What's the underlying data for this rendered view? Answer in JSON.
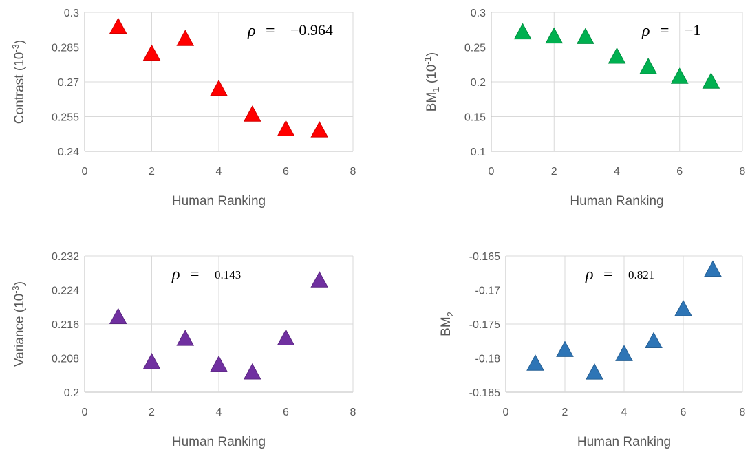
{
  "chart_data": [
    {
      "type": "scatter",
      "xlabel": "Human Ranking",
      "ylabel": "Contrast (10",
      "ylabel_sup": "-3",
      "ylabel_suffix": ")",
      "xlim": [
        0,
        8
      ],
      "ylim": [
        0.24,
        0.3
      ],
      "xticks": [
        "0",
        "2",
        "4",
        "6",
        "8"
      ],
      "yticks": [
        "0.24",
        "0.255",
        "0.27",
        "0.285",
        "0.3"
      ],
      "annotation": {
        "symbol": "ρ",
        "equals": "=",
        "value": "−0.964"
      },
      "color": "#ff0000",
      "points": [
        {
          "x": 1,
          "y": 0.2935
        },
        {
          "x": 2,
          "y": 0.2819
        },
        {
          "x": 3,
          "y": 0.2883
        },
        {
          "x": 4,
          "y": 0.2667
        },
        {
          "x": 5,
          "y": 0.2556
        },
        {
          "x": 6,
          "y": 0.2493
        },
        {
          "x": 7,
          "y": 0.2488
        }
      ]
    },
    {
      "type": "scatter",
      "xlabel": "Human Ranking",
      "ylabel": "BM",
      "ylabel_sub": "1",
      "ylabel_suffix": " (10",
      "ylabel_sup": "-1",
      "ylabel_suffix2": ")",
      "xlim": [
        0,
        8
      ],
      "ylim": [
        0.1,
        0.3
      ],
      "xticks": [
        "0",
        "2",
        "4",
        "6",
        "8"
      ],
      "yticks": [
        "0.1",
        "0.15",
        "0.2",
        "0.25",
        "0.3"
      ],
      "annotation": {
        "symbol": "ρ",
        "equals": "=",
        "value": "−1"
      },
      "color": "#00b050",
      "points": [
        {
          "x": 1,
          "y": 0.2705
        },
        {
          "x": 2,
          "y": 0.2645
        },
        {
          "x": 3,
          "y": 0.2638
        },
        {
          "x": 4,
          "y": 0.2355
        },
        {
          "x": 5,
          "y": 0.2205
        },
        {
          "x": 6,
          "y": 0.2065
        },
        {
          "x": 7,
          "y": 0.1995
        }
      ]
    },
    {
      "type": "scatter",
      "xlabel": "Human Ranking",
      "ylabel": "Variance (10",
      "ylabel_sup": "-3",
      "ylabel_suffix": ")",
      "xlim": [
        0,
        8
      ],
      "ylim": [
        0.2,
        0.232
      ],
      "xticks": [
        "0",
        "2",
        "4",
        "6",
        "8"
      ],
      "yticks": [
        "0.2",
        "0.208",
        "0.216",
        "0.224",
        "0.232"
      ],
      "annotation": {
        "symbol": "ρ",
        "equals": "=",
        "value": "0.143"
      },
      "color": "#7030a0",
      "points": [
        {
          "x": 1,
          "y": 0.2175
        },
        {
          "x": 2,
          "y": 0.2069
        },
        {
          "x": 3,
          "y": 0.2124
        },
        {
          "x": 4,
          "y": 0.2063
        },
        {
          "x": 5,
          "y": 0.2045
        },
        {
          "x": 6,
          "y": 0.2125
        },
        {
          "x": 7,
          "y": 0.2261
        }
      ]
    },
    {
      "type": "scatter",
      "xlabel": "Human Ranking",
      "ylabel": "BM",
      "ylabel_sub": "2",
      "xlim": [
        0,
        8
      ],
      "ylim": [
        -0.185,
        -0.165
      ],
      "xticks": [
        "0",
        "2",
        "4",
        "6",
        "8"
      ],
      "yticks": [
        "-0.185",
        "-0.18",
        "-0.175",
        "-0.17",
        "-0.165"
      ],
      "annotation": {
        "symbol": "ρ",
        "equals": "=",
        "value": "0.821"
      },
      "color": "#2e75b6",
      "points": [
        {
          "x": 1,
          "y": -0.1809
        },
        {
          "x": 2,
          "y": -0.1789
        },
        {
          "x": 3,
          "y": -0.1822
        },
        {
          "x": 4,
          "y": -0.1795
        },
        {
          "x": 5,
          "y": -0.1776
        },
        {
          "x": 6,
          "y": -0.1729
        },
        {
          "x": 7,
          "y": -0.1671
        }
      ]
    }
  ]
}
